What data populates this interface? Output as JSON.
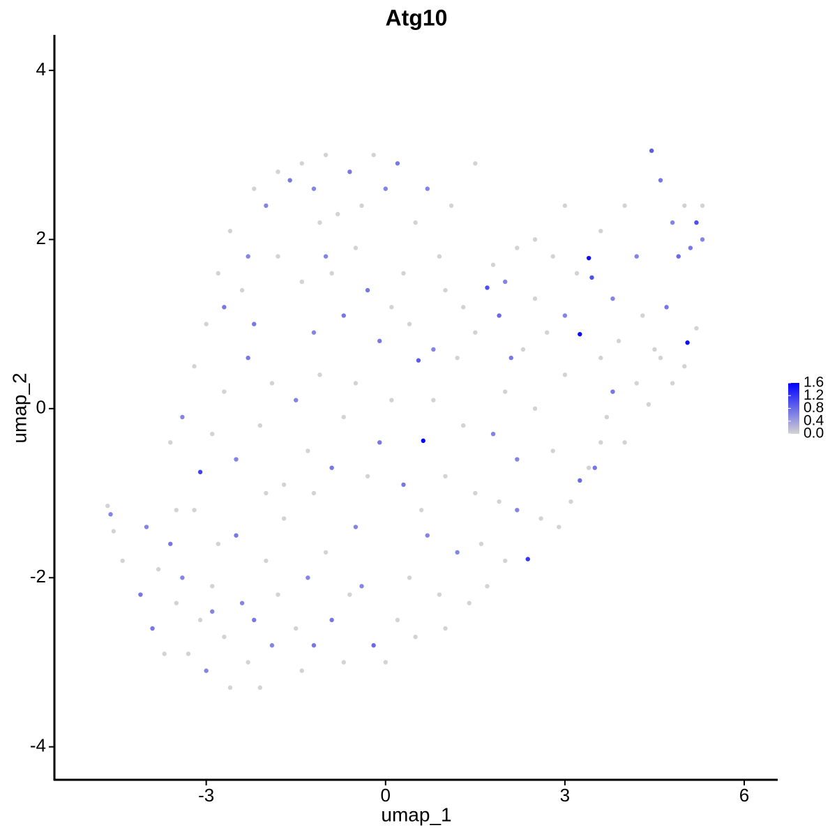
{
  "chart_data": {
    "type": "scatter",
    "title": "Atg10",
    "x_label": "umap_1",
    "y_label": "umap_2",
    "xlim": [
      -5.54,
      6.56
    ],
    "ylim": [
      -4.39,
      4.42
    ],
    "xticks": [
      -3,
      0,
      3,
      6
    ],
    "yticks": [
      -4,
      -2,
      0,
      2,
      4
    ],
    "low_color": "#d3d3d3",
    "high_color": "#0000ff",
    "colorlim": [
      0,
      1.6
    ],
    "colorticks": [
      {
        "value": 0,
        "label": "0.0"
      },
      {
        "value": 0.4,
        "label": "0.4"
      },
      {
        "value": 0.8,
        "label": "0.8"
      },
      {
        "value": 1.2,
        "label": "1.2"
      },
      {
        "value": 1.6,
        "label": "1.6"
      }
    ],
    "x": [
      -4.6,
      -4.65,
      -4.55,
      -4.4,
      -4.1,
      -4.0,
      -3.9,
      -3.8,
      -3.7,
      -3.6,
      -3.5,
      -3.4,
      -3.3,
      -3.2,
      -3.1,
      -3.0,
      -2.9,
      -2.8,
      -2.7,
      -2.6,
      -2.5,
      -2.4,
      -2.3,
      -2.2,
      -2.1,
      -2.0,
      -1.9,
      -1.8,
      -1.7,
      -1.5,
      -1.4,
      -1.3,
      -1.2,
      -1.0,
      -0.9,
      -0.7,
      -0.6,
      -0.4,
      -0.2,
      0,
      0.2,
      0.4,
      0.5,
      0.7,
      0.9,
      1.0,
      1.2,
      1.4,
      1.6,
      1.9,
      2.0,
      2.2,
      2.38,
      2.6,
      2.9,
      3.1,
      3.25,
      3.4,
      3.5,
      3.6,
      3.7,
      3.8,
      4.0,
      4.2,
      4.4,
      4.6,
      4.8,
      5.0,
      5.05,
      5.2,
      3.25,
      3.0,
      2.7,
      2.5,
      2.3,
      2.1,
      1.9,
      1.7,
      1.5,
      1.3,
      1.2,
      1.0,
      0.8,
      0.55,
      0.4,
      0.3,
      0.1,
      -0.1,
      -0.3,
      -0.5,
      -0.7,
      -0.9,
      -1.1,
      -1.2,
      -1.4,
      -1.6,
      -1.8,
      -2.0,
      -2.2,
      -2.4,
      -2.6,
      -2.8,
      -3.0,
      -3.2,
      -3.4,
      -3.6,
      -3.1,
      -2.9,
      -2.7,
      -2.5,
      -2.3,
      -2.1,
      -1.9,
      -1.7,
      -1.5,
      -1.3,
      -1.1,
      -0.9,
      -0.7,
      -0.5,
      -0.3,
      -0.1,
      0.1,
      0.3,
      0.63,
      0.8,
      1.0,
      1.3,
      1.5,
      1.8,
      2.0,
      2.2,
      2.5,
      2.8,
      3.0,
      3.4,
      3.45,
      3.6,
      3.8,
      4.0,
      4.2,
      4.3,
      4.45,
      4.6,
      4.8,
      4.9,
      5.0,
      5.1,
      5.2,
      5.3,
      5.3,
      4.7,
      4.5,
      3.9,
      3.6,
      3.2,
      3.0,
      2.8,
      2.5,
      2.2,
      2.0,
      1.8,
      0.9,
      0.7,
      0.5,
      0.2,
      0.0,
      -0.2,
      -0.4,
      -0.6,
      -0.8,
      -1.0,
      -1.2,
      -1.4,
      -1.8,
      -2.2,
      -2.3,
      -2.7,
      -1.0,
      1.1,
      1.5,
      0.6,
      -0.5,
      -1.2,
      -2.0,
      -3.5,
      -2.9,
      1.7
    ],
    "y": [
      -1.25,
      -1.15,
      -1.45,
      -1.8,
      -2.2,
      -1.4,
      -2.6,
      -1.9,
      -2.9,
      -1.6,
      -2.3,
      -2.0,
      -2.9,
      -1.2,
      -2.5,
      -3.1,
      -2.1,
      -1.6,
      -2.7,
      -3.3,
      -1.5,
      -2.3,
      -3.0,
      -2.5,
      -3.3,
      -1.8,
      -2.8,
      -2.2,
      -1.3,
      -2.6,
      -3.1,
      -2.0,
      -2.8,
      -1.7,
      -2.5,
      -3.0,
      -2.2,
      -2.1,
      -2.8,
      -3.0,
      -2.5,
      -2.0,
      -2.7,
      -1.5,
      -2.2,
      -2.6,
      -1.7,
      -2.3,
      -1.6,
      -1.1,
      -1.8,
      -1.2,
      -1.78,
      -1.3,
      -1.4,
      -1.1,
      -0.85,
      -0.7,
      -0.7,
      -0.4,
      -0.1,
      0.2,
      -0.4,
      0.3,
      0.05,
      0.6,
      0.3,
      0.5,
      0.78,
      0.95,
      0.88,
      1.1,
      0.9,
      1.3,
      0.7,
      0.6,
      1.1,
      1.43,
      0.9,
      1.2,
      0.6,
      1.4,
      0.7,
      0.57,
      1.0,
      1.6,
      1.2,
      0.8,
      1.4,
      1.9,
      1.1,
      1.6,
      2.2,
      0.9,
      1.5,
      2.7,
      1.8,
      2.4,
      1.0,
      1.4,
      2.1,
      1.6,
      1.0,
      0.5,
      -0.1,
      -0.4,
      -0.75,
      -0.3,
      0.2,
      -0.6,
      0.6,
      -0.2,
      0.3,
      -0.9,
      0.1,
      -0.5,
      0.4,
      -0.7,
      -0.1,
      0.3,
      -0.8,
      -0.4,
      0.1,
      -0.9,
      -0.38,
      0.1,
      -0.8,
      -0.2,
      -1.0,
      -0.3,
      0.2,
      -0.6,
      0.0,
      -0.5,
      0.4,
      1.78,
      1.55,
      2.1,
      1.3,
      2.4,
      1.8,
      1.1,
      3.05,
      2.7,
      2.2,
      1.8,
      2.4,
      1.9,
      2.2,
      2.0,
      2.4,
      1.2,
      0.7,
      0.8,
      0.6,
      1.6,
      2.4,
      1.8,
      2.0,
      1.9,
      1.5,
      1.7,
      1.8,
      2.6,
      2.2,
      2.9,
      2.6,
      3.0,
      2.4,
      2.8,
      2.3,
      3.0,
      2.6,
      2.9,
      2.8,
      2.6,
      1.8,
      1.2,
      1.8,
      2.4,
      2.9,
      -1.2,
      -1.4,
      -1.0,
      -1.0,
      -1.2,
      -2.4,
      -2.1
    ],
    "values": [
      0.6,
      0,
      0,
      0,
      0.7,
      0.6,
      0.7,
      0,
      0,
      0.7,
      0,
      0.6,
      0,
      0,
      0,
      0.6,
      0,
      0,
      0,
      0,
      0.7,
      0.6,
      0,
      0.7,
      0,
      0,
      0.6,
      0,
      0,
      0,
      0,
      0.6,
      0.7,
      0,
      0.7,
      0,
      0,
      0.6,
      0.8,
      0,
      0,
      0,
      0,
      0.6,
      0,
      0,
      0.6,
      0,
      0,
      0,
      0,
      0.6,
      1.2,
      0,
      0,
      0,
      0.8,
      0,
      0.7,
      0,
      0,
      0.7,
      0,
      0,
      0,
      0,
      0,
      0,
      1.5,
      0,
      1.5,
      0.6,
      0,
      0,
      0,
      0.7,
      0.8,
      1.0,
      0,
      0,
      0,
      0,
      0.6,
      0.9,
      0,
      0,
      0,
      0.7,
      0.7,
      0,
      0.7,
      0,
      0,
      0.6,
      0,
      0.7,
      0,
      0.6,
      0.7,
      0,
      0,
      0,
      0,
      0,
      0.6,
      0,
      1.1,
      0,
      0,
      0.6,
      0.7,
      0,
      0,
      0,
      0.6,
      0,
      0,
      0.7,
      0,
      0,
      0,
      0.7,
      0,
      0.7,
      1.6,
      0,
      0,
      0,
      0,
      0.6,
      0,
      0.6,
      0,
      0,
      0,
      1.5,
      1.0,
      0,
      0.6,
      0,
      0.6,
      0,
      0.9,
      0.7,
      0.6,
      0.8,
      0,
      0.7,
      1.0,
      0.6,
      0,
      0.7,
      0,
      0,
      0,
      0,
      0,
      0,
      0,
      0,
      0.6,
      0,
      0,
      0.6,
      0,
      0.7,
      0.6,
      0,
      0,
      0.7,
      0,
      0,
      0.6,
      0,
      0,
      0,
      0.6,
      0.7,
      0.6,
      0,
      0,
      0,
      0.6,
      0,
      0,
      0,
      0.6,
      0
    ]
  }
}
